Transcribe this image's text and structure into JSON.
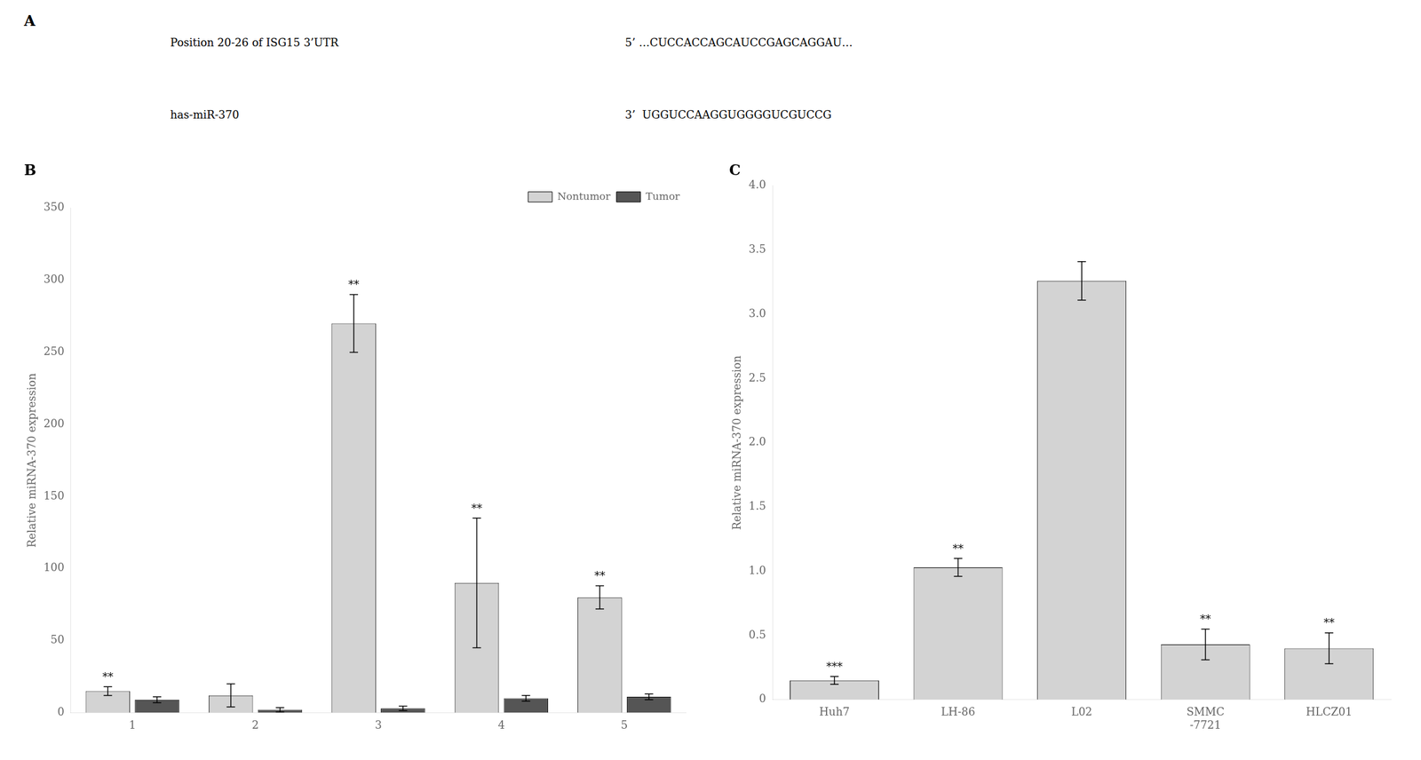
{
  "chart_data": [
    {
      "type": "text",
      "title": "A",
      "annotations": [
        "Position 20-26 of ISG15 3’UTR",
        "5’ …CUCCACCAGCAUCCGAGCAGGAU…",
        "has-miR-370",
        "3’  UGGUCCAAGGUGGGGUCGUCCG"
      ]
    },
    {
      "type": "bar",
      "title": "B",
      "ylabel": "Relative miRNA-370 expression",
      "categories": [
        "1",
        "2",
        "3",
        "4",
        "5"
      ],
      "series": [
        {
          "name": "Nontumor",
          "color": "#d3d3d3",
          "values": [
            15,
            12,
            270,
            90,
            80
          ],
          "errors": [
            3,
            8,
            20,
            45,
            8
          ],
          "annotations": [
            "**",
            null,
            "**",
            "**",
            "**"
          ]
        },
        {
          "name": "Tumor",
          "color": "#555555",
          "values": [
            9,
            2,
            3,
            10,
            11
          ],
          "errors": [
            2,
            1.5,
            1.5,
            2,
            2
          ]
        }
      ],
      "ylim": [
        0,
        350
      ],
      "yticks": [
        0,
        50,
        100,
        150,
        200,
        250,
        300,
        350
      ],
      "grid": false,
      "legend": "upper right"
    },
    {
      "type": "bar",
      "title": "C",
      "ylabel": "Relative miRNA-370 expression",
      "categories": [
        "Huh7",
        "LH-86",
        "L02",
        "SMMC\n-7721",
        "HLCZ01"
      ],
      "values": [
        0.15,
        1.03,
        3.26,
        0.43,
        0.4
      ],
      "errors": [
        0.03,
        0.07,
        0.15,
        0.12,
        0.12
      ],
      "color": "#d3d3d3",
      "annotations": [
        "***",
        "**",
        null,
        "**",
        "**"
      ],
      "ylim": [
        0,
        4.0
      ],
      "yticks": [
        0,
        0.5,
        {
          "value": 1,
          "label": "1.0"
        },
        1.5,
        {
          "value": 2,
          "label": "2.0"
        },
        2.5,
        {
          "value": 3,
          "label": "3.0"
        },
        3.5,
        {
          "value": 4,
          "label": "4.0"
        }
      ],
      "grid": false
    }
  ]
}
